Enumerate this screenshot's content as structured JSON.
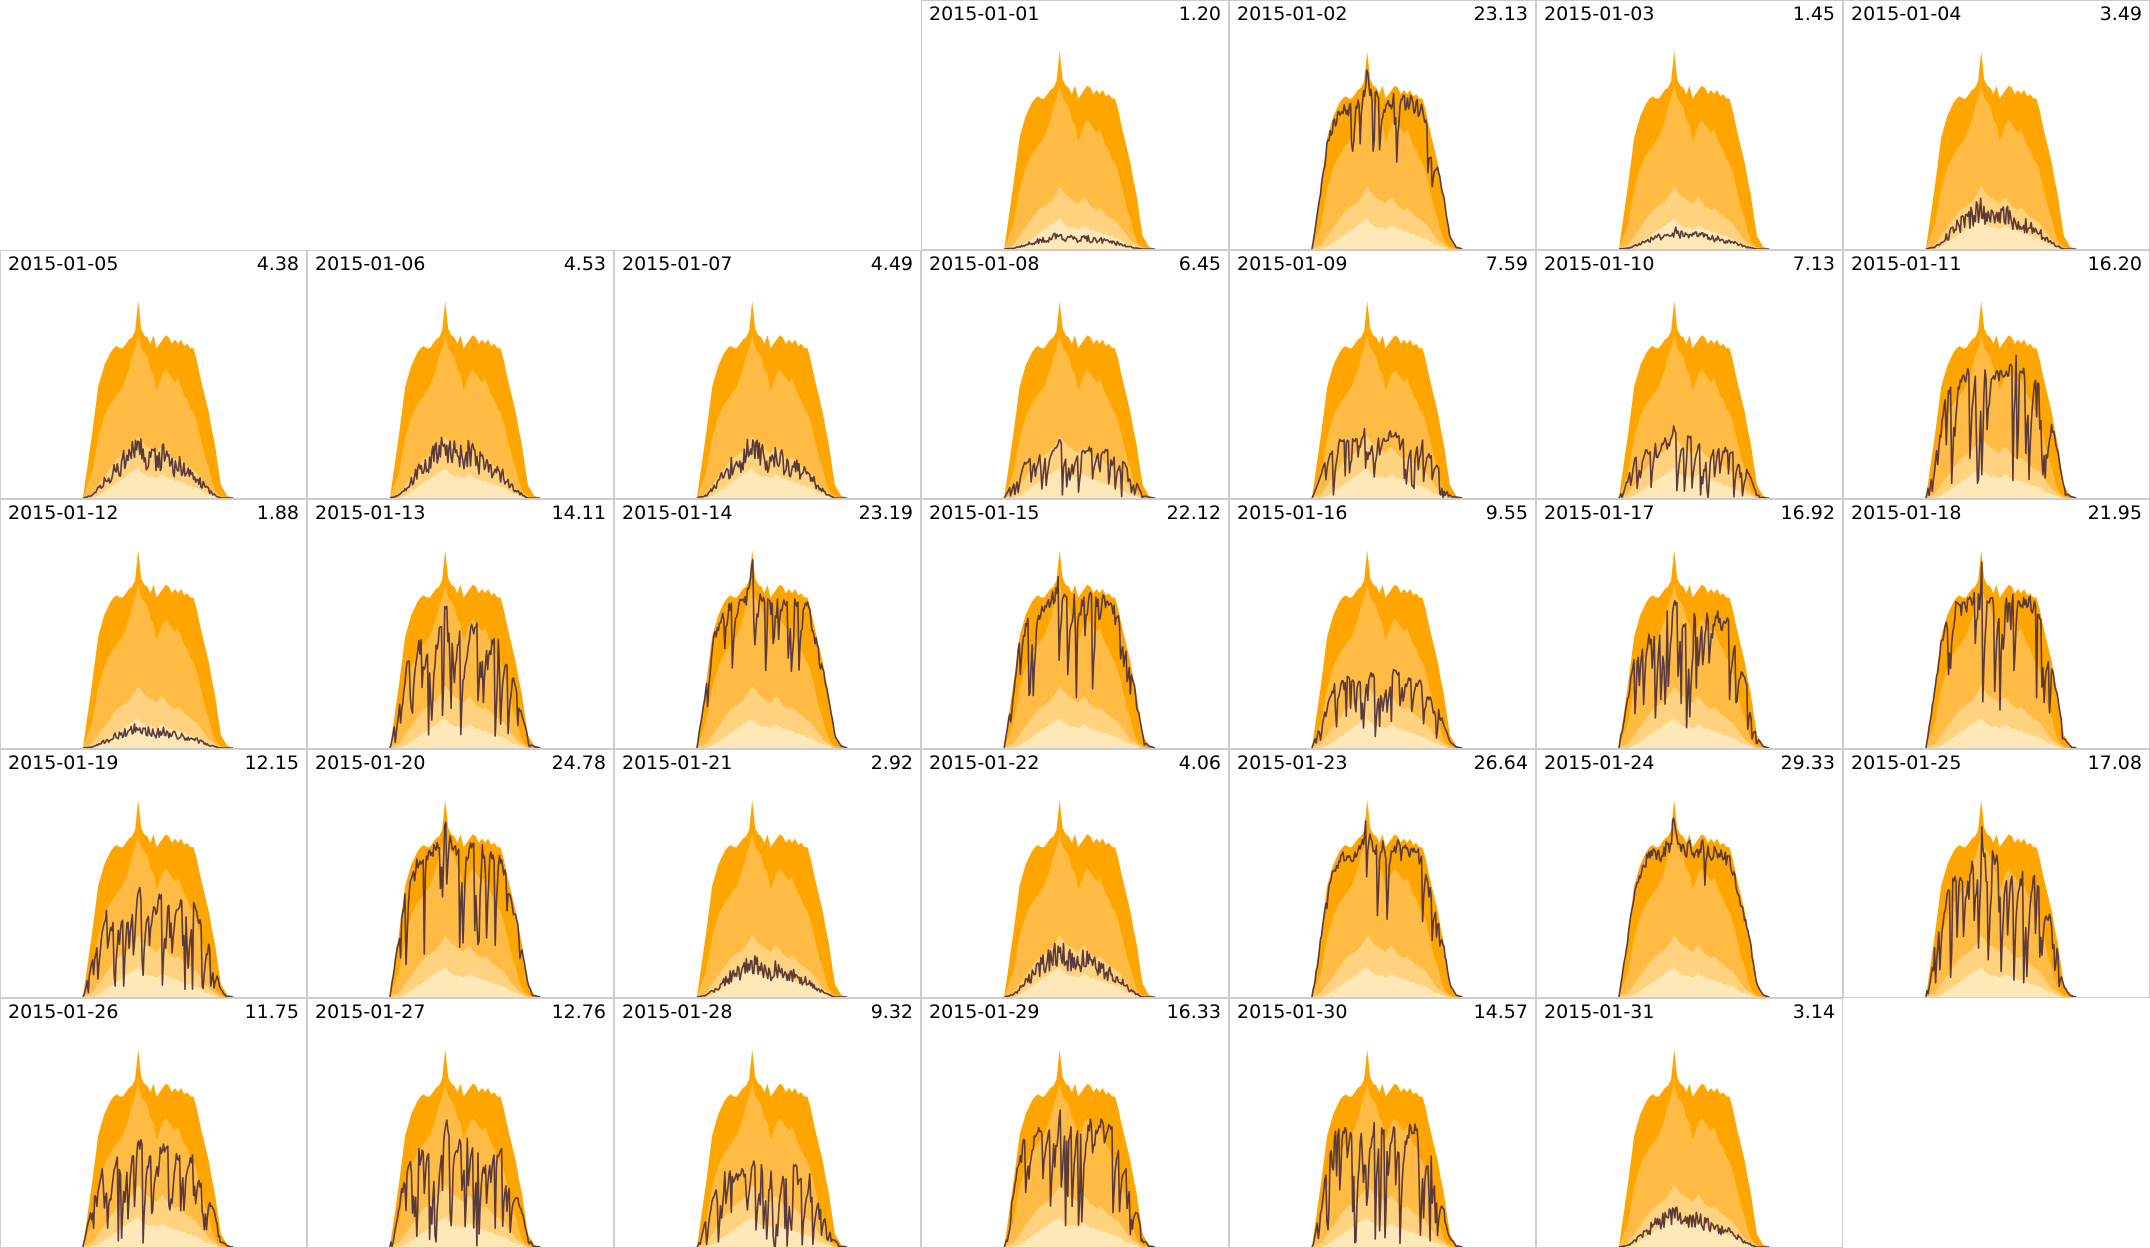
{
  "chart_data": {
    "type": "area",
    "layout": "calendar grid, 7 columns, Monday-first week rows",
    "colors": {
      "envelope_max": "#FFA500",
      "envelope_p75": "#FFBB44",
      "envelope_p50": "#FFD27F",
      "envelope_p25": "#FFE8B8",
      "actual_line": "#5A3A3A",
      "cell_border": "#CCCCCC"
    },
    "envelope_profile": {
      "x_fraction": [
        0.27,
        0.3,
        0.32,
        0.34,
        0.36,
        0.37,
        0.38,
        0.39,
        0.4,
        0.41,
        0.42,
        0.43,
        0.44,
        0.45,
        0.46,
        0.47,
        0.48,
        0.49,
        0.5,
        0.51,
        0.52,
        0.53,
        0.54,
        0.55,
        0.56,
        0.57,
        0.58,
        0.59,
        0.6,
        0.61,
        0.62,
        0.63,
        0.64,
        0.65,
        0.66,
        0.67,
        0.68,
        0.69,
        0.7,
        0.71,
        0.72,
        0.74,
        0.76
      ],
      "max": [
        0.0,
        0.3,
        0.52,
        0.62,
        0.68,
        0.7,
        0.71,
        0.7,
        0.7,
        0.72,
        0.74,
        0.75,
        0.78,
        0.92,
        0.79,
        0.76,
        0.75,
        0.72,
        0.76,
        0.7,
        0.72,
        0.74,
        0.76,
        0.75,
        0.72,
        0.74,
        0.72,
        0.74,
        0.71,
        0.72,
        0.7,
        0.7,
        0.65,
        0.58,
        0.52,
        0.46,
        0.4,
        0.32,
        0.25,
        0.15,
        0.06,
        0.01,
        0.0
      ],
      "p75": [
        0.0,
        0.12,
        0.28,
        0.38,
        0.44,
        0.46,
        0.48,
        0.5,
        0.52,
        0.56,
        0.6,
        0.66,
        0.7,
        0.76,
        0.7,
        0.68,
        0.66,
        0.6,
        0.58,
        0.5,
        0.54,
        0.58,
        0.6,
        0.58,
        0.56,
        0.54,
        0.56,
        0.52,
        0.48,
        0.46,
        0.42,
        0.4,
        0.36,
        0.3,
        0.24,
        0.18,
        0.14,
        0.08,
        0.04,
        0.02,
        0.01,
        0.0,
        0.0
      ],
      "p50": [
        0.0,
        0.02,
        0.06,
        0.1,
        0.14,
        0.16,
        0.18,
        0.19,
        0.2,
        0.21,
        0.22,
        0.24,
        0.26,
        0.29,
        0.27,
        0.25,
        0.24,
        0.23,
        0.22,
        0.21,
        0.23,
        0.24,
        0.22,
        0.2,
        0.19,
        0.18,
        0.19,
        0.18,
        0.16,
        0.15,
        0.14,
        0.13,
        0.12,
        0.1,
        0.08,
        0.06,
        0.04,
        0.03,
        0.02,
        0.01,
        0.0,
        0.0,
        0.0
      ],
      "p25": [
        0.0,
        0.0,
        0.01,
        0.03,
        0.05,
        0.06,
        0.07,
        0.08,
        0.09,
        0.1,
        0.11,
        0.12,
        0.13,
        0.14,
        0.12,
        0.11,
        0.1,
        0.1,
        0.1,
        0.09,
        0.1,
        0.11,
        0.1,
        0.09,
        0.09,
        0.08,
        0.08,
        0.07,
        0.07,
        0.06,
        0.06,
        0.05,
        0.05,
        0.04,
        0.03,
        0.02,
        0.02,
        0.01,
        0.01,
        0.0,
        0.0,
        0.0,
        0.0
      ]
    },
    "days": [
      {
        "date": "2015-01-01",
        "value": "1.20",
        "level": 0.04,
        "variability": 0.25
      },
      {
        "date": "2015-01-02",
        "value": "23.13",
        "level": 0.88,
        "variability": 0.35
      },
      {
        "date": "2015-01-03",
        "value": "1.45",
        "level": 0.05,
        "variability": 0.4
      },
      {
        "date": "2015-01-04",
        "value": "3.49",
        "level": 0.12,
        "variability": 0.2
      },
      {
        "date": "2015-01-05",
        "value": "4.38",
        "level": 0.15,
        "variability": 0.3
      },
      {
        "date": "2015-01-06",
        "value": "4.53",
        "level": 0.16,
        "variability": 0.9
      },
      {
        "date": "2015-01-07",
        "value": "4.49",
        "level": 0.15,
        "variability": 0.85
      },
      {
        "date": "2015-01-08",
        "value": "6.45",
        "level": 0.22,
        "variability": 0.95
      },
      {
        "date": "2015-01-09",
        "value": "7.59",
        "level": 0.28,
        "variability": 1.0
      },
      {
        "date": "2015-01-10",
        "value": "7.13",
        "level": 0.26,
        "variability": 1.0
      },
      {
        "date": "2015-01-11",
        "value": "16.20",
        "level": 0.62,
        "variability": 0.85
      },
      {
        "date": "2015-01-12",
        "value": "1.88",
        "level": 0.06,
        "variability": 0.2
      },
      {
        "date": "2015-01-13",
        "value": "14.11",
        "level": 0.55,
        "variability": 0.9
      },
      {
        "date": "2015-01-14",
        "value": "23.19",
        "level": 0.85,
        "variability": 0.45
      },
      {
        "date": "2015-01-15",
        "value": "22.12",
        "level": 0.8,
        "variability": 0.6
      },
      {
        "date": "2015-01-16",
        "value": "9.55",
        "level": 0.35,
        "variability": 0.8
      },
      {
        "date": "2015-01-17",
        "value": "16.92",
        "level": 0.62,
        "variability": 0.9
      },
      {
        "date": "2015-01-18",
        "value": "21.95",
        "level": 0.8,
        "variability": 0.7
      },
      {
        "date": "2015-01-19",
        "value": "12.15",
        "level": 0.45,
        "variability": 0.9
      },
      {
        "date": "2015-01-20",
        "value": "24.78",
        "level": 0.9,
        "variability": 0.7
      },
      {
        "date": "2015-01-21",
        "value": "2.92",
        "level": 0.1,
        "variability": 0.25
      },
      {
        "date": "2015-01-22",
        "value": "4.06",
        "level": 0.14,
        "variability": 0.25
      },
      {
        "date": "2015-01-23",
        "value": "26.64",
        "level": 0.92,
        "variability": 0.5
      },
      {
        "date": "2015-01-24",
        "value": "29.33",
        "level": 0.98,
        "variability": 0.25
      },
      {
        "date": "2015-01-25",
        "value": "17.08",
        "level": 0.62,
        "variability": 0.9
      },
      {
        "date": "2015-01-26",
        "value": "11.75",
        "level": 0.45,
        "variability": 1.0
      },
      {
        "date": "2015-01-27",
        "value": "12.76",
        "level": 0.48,
        "variability": 1.0
      },
      {
        "date": "2015-01-28",
        "value": "9.32",
        "level": 0.34,
        "variability": 1.0
      },
      {
        "date": "2015-01-29",
        "value": "16.33",
        "level": 0.6,
        "variability": 0.8
      },
      {
        "date": "2015-01-30",
        "value": "14.57",
        "level": 0.55,
        "variability": 1.0
      },
      {
        "date": "2015-01-31",
        "value": "3.14",
        "level": 0.1,
        "variability": 0.6
      }
    ]
  }
}
